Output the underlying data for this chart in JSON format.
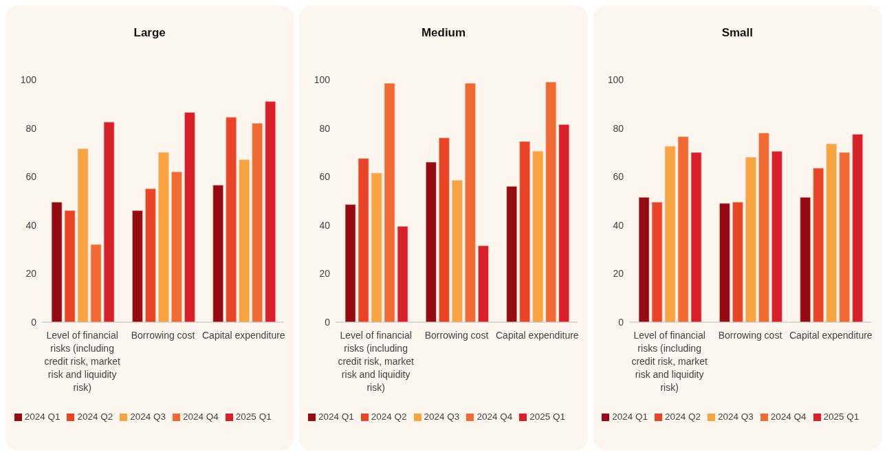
{
  "chart_data": [
    {
      "type": "bar",
      "title": "Large",
      "categories": [
        "Level of financial risks (including credit risk, market risk and liquidity risk)",
        "Borrowing cost",
        "Capital expenditure"
      ],
      "series": [
        {
          "name": "2024 Q1",
          "color": "#940c12",
          "values": [
            49.5,
            46,
            56.5
          ]
        },
        {
          "name": "2024 Q2",
          "color": "#e94425",
          "values": [
            46,
            55,
            84.5
          ]
        },
        {
          "name": "2024 Q3",
          "color": "#f8a440",
          "values": [
            71.5,
            70,
            67
          ]
        },
        {
          "name": "2024 Q4",
          "color": "#f06a31",
          "values": [
            32,
            62,
            82
          ]
        },
        {
          "name": "2025 Q1",
          "color": "#d72029",
          "values": [
            82.5,
            86.5,
            91
          ]
        }
      ],
      "ylim": [
        0,
        100
      ],
      "yticks": [
        0,
        20,
        40,
        60,
        80,
        100
      ],
      "grid": false,
      "legend": "bottom"
    },
    {
      "type": "bar",
      "title": "Medium",
      "categories": [
        "Level of financial risks (including credit risk, market risk and liquidity risk)",
        "Borrowing cost",
        "Capital expenditure"
      ],
      "series": [
        {
          "name": "2024 Q1",
          "color": "#940c12",
          "values": [
            48.5,
            66,
            56
          ]
        },
        {
          "name": "2024 Q2",
          "color": "#e94425",
          "values": [
            67.5,
            76,
            74.5
          ]
        },
        {
          "name": "2024 Q3",
          "color": "#f8a440",
          "values": [
            61.5,
            58.5,
            70.5
          ]
        },
        {
          "name": "2024 Q4",
          "color": "#f06a31",
          "values": [
            98.5,
            98.5,
            99
          ]
        },
        {
          "name": "2025 Q1",
          "color": "#d72029",
          "values": [
            39.5,
            31.5,
            81.5
          ]
        }
      ],
      "ylim": [
        0,
        100
      ],
      "yticks": [
        0,
        20,
        40,
        60,
        80,
        100
      ],
      "grid": false,
      "legend": "bottom"
    },
    {
      "type": "bar",
      "title": "Small",
      "categories": [
        "Level of financial risks (including credit risk, market risk and liquidity risk)",
        "Borrowing cost",
        "Capital expenditure"
      ],
      "series": [
        {
          "name": "2024 Q1",
          "color": "#940c12",
          "values": [
            51.5,
            49,
            51.5
          ]
        },
        {
          "name": "2024 Q2",
          "color": "#e94425",
          "values": [
            49.5,
            49.5,
            63.5
          ]
        },
        {
          "name": "2024 Q3",
          "color": "#f8a440",
          "values": [
            72.5,
            68,
            73.5
          ]
        },
        {
          "name": "2024 Q4",
          "color": "#f06a31",
          "values": [
            76.5,
            78,
            70
          ]
        },
        {
          "name": "2025 Q1",
          "color": "#d72029",
          "values": [
            70,
            70.5,
            77.5
          ]
        }
      ],
      "ylim": [
        0,
        100
      ],
      "yticks": [
        0,
        20,
        40,
        60,
        80,
        100
      ],
      "grid": false,
      "legend": "bottom"
    }
  ]
}
